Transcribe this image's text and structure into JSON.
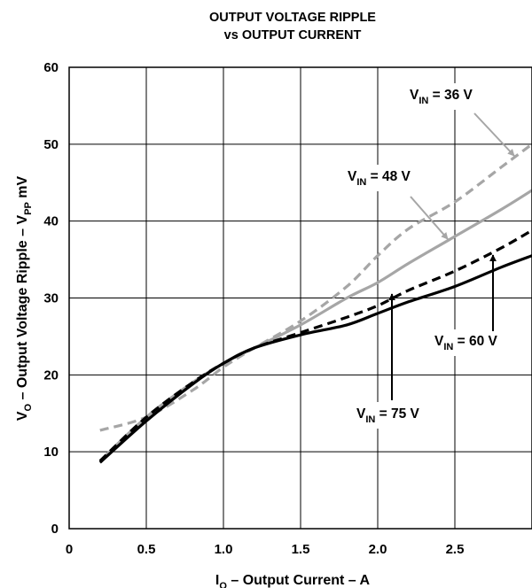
{
  "chart_data": {
    "type": "line",
    "title": "OUTPUT VOLTAGE RIPPLE",
    "subtitle": "vs OUTPUT CURRENT",
    "xlabel": {
      "main": "I",
      "sub": "O",
      "rest": " – Output Current – A"
    },
    "ylabel": {
      "p1": "V",
      "sub1": "O",
      "p2": " – Output Voltage Ripple – V",
      "sub2": "PP",
      "p3": " mV"
    },
    "xlim": [
      0,
      3.0
    ],
    "ylim": [
      0,
      60
    ],
    "xticks": [
      {
        "value": 0,
        "label": "0"
      },
      {
        "value": 0.5,
        "label": "0.5"
      },
      {
        "value": 1.0,
        "label": "1.0"
      },
      {
        "value": 1.5,
        "label": "1.5"
      },
      {
        "value": 2.0,
        "label": "2.0"
      },
      {
        "value": 2.5,
        "label": "2.5"
      }
    ],
    "yticks": [
      {
        "value": 0,
        "label": "0"
      },
      {
        "value": 10,
        "label": "10"
      },
      {
        "value": 20,
        "label": "20"
      },
      {
        "value": 30,
        "label": "30"
      },
      {
        "value": 40,
        "label": "40"
      },
      {
        "value": 50,
        "label": "50"
      },
      {
        "value": 60,
        "label": "60"
      }
    ],
    "grid": true,
    "series": [
      {
        "name": "V_IN = 36 V",
        "color": "#a6a6a6",
        "dash": true,
        "x": [
          0.2,
          0.5,
          0.8,
          1.0,
          1.2,
          1.5,
          1.8,
          2.0,
          2.2,
          2.5,
          2.8,
          3.0
        ],
        "y": [
          12.8,
          14.5,
          18.0,
          21.0,
          23.5,
          27.0,
          31.5,
          35.5,
          39.0,
          42.5,
          47.0,
          50.0
        ]
      },
      {
        "name": "V_IN = 48 V",
        "color": "#a6a6a6",
        "dash": false,
        "x": [
          0.2,
          0.5,
          0.8,
          1.0,
          1.2,
          1.5,
          1.8,
          2.0,
          2.2,
          2.5,
          2.8,
          3.0
        ],
        "y": [
          8.8,
          14.5,
          19.0,
          21.5,
          23.5,
          26.5,
          30.0,
          32.0,
          34.5,
          38.0,
          41.5,
          44.0
        ]
      },
      {
        "name": "V_IN = 60 V",
        "color": "#000000",
        "dash": true,
        "x": [
          0.2,
          0.5,
          0.8,
          1.0,
          1.2,
          1.5,
          1.8,
          2.0,
          2.2,
          2.5,
          2.8,
          3.0
        ],
        "y": [
          8.8,
          14.5,
          19.0,
          21.5,
          23.5,
          25.5,
          27.5,
          29.0,
          31.0,
          33.5,
          36.5,
          38.8
        ]
      },
      {
        "name": "V_IN = 75 V",
        "color": "#000000",
        "dash": false,
        "x": [
          0.2,
          0.5,
          0.8,
          1.0,
          1.2,
          1.5,
          1.8,
          2.0,
          2.2,
          2.5,
          2.8,
          3.0
        ],
        "y": [
          8.6,
          14.0,
          18.8,
          21.5,
          23.5,
          25.2,
          26.5,
          28.0,
          29.5,
          31.5,
          34.0,
          35.5
        ]
      }
    ],
    "annotations": [
      {
        "pre": "V",
        "sub": "IN",
        "post": " = 36 V"
      },
      {
        "pre": "V",
        "sub": "IN",
        "post": " = 48 V"
      },
      {
        "pre": "V",
        "sub": "IN",
        "post": " = 60 V"
      },
      {
        "pre": "V",
        "sub": "IN",
        "post": " = 75 V"
      }
    ]
  }
}
